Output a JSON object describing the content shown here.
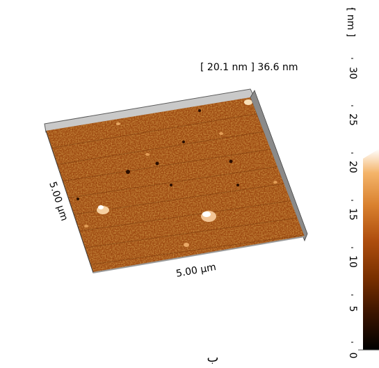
{
  "scale": {
    "unit_label": "[ nm ]",
    "ticks": [
      "30",
      "25",
      "20",
      "15",
      "10",
      "5",
      "0"
    ],
    "ramp_colors": [
      "#000000",
      "#3a1400",
      "#7a3000",
      "#b04f0e",
      "#d9812e",
      "#f4b46a",
      "#ffffff"
    ]
  },
  "surface": {
    "height_range_label": "[ 20.1 nm ] 36.6 nm",
    "x_extent_label": "5.00 µm",
    "y_extent_label": "5.00 µm",
    "base_color": "#9c4810"
  },
  "caption": "ب"
}
